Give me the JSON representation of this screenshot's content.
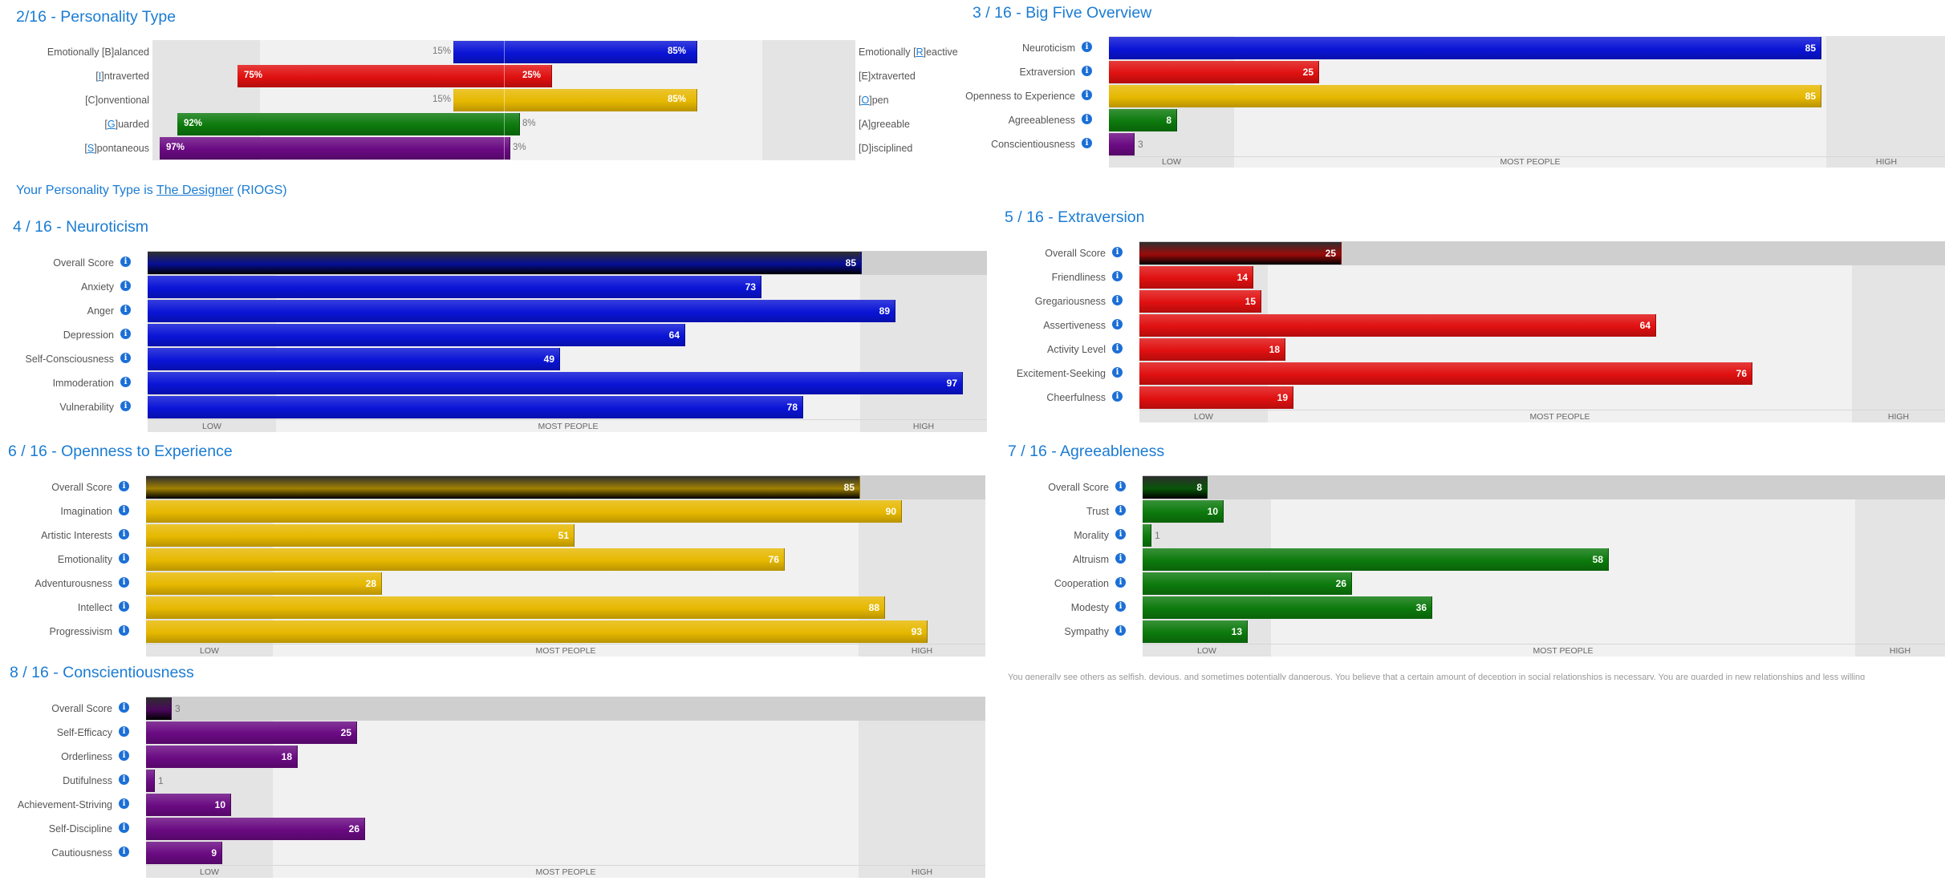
{
  "personality_type": {
    "title": "2/16 - Personality Type",
    "rows": [
      {
        "left_prefix": "Emotionally [B]alanced",
        "right_prefix": "Emotionally [",
        "right_key": "R",
        "right_suffix": "]eactive",
        "left_key": "",
        "left_suffix": "",
        "left_pct": "15%",
        "right_pct": "85%",
        "dominant": "right",
        "value": 85,
        "color": "#0a14d6"
      },
      {
        "left_prefix": "[",
        "left_key": "I",
        "left_suffix": "]ntraverted",
        "right_prefix": "[E]xtraverted",
        "right_key": "",
        "right_suffix": "",
        "left_pct": "75%",
        "right_pct": "25%",
        "dominant": "left",
        "value": 75,
        "color": "#e01010"
      },
      {
        "left_prefix": "[C]onventional",
        "left_key": "",
        "left_suffix": "",
        "right_prefix": "[",
        "right_key": "O",
        "right_suffix": "]pen",
        "left_pct": "15%",
        "right_pct": "85%",
        "dominant": "right",
        "value": 85,
        "color": "#e6b800"
      },
      {
        "left_prefix": "[",
        "left_key": "G",
        "left_suffix": "]uarded",
        "right_prefix": "[A]greeable",
        "right_key": "",
        "right_suffix": "",
        "left_pct": "92%",
        "right_pct": "8%",
        "dominant": "left",
        "value": 92,
        "color": "#0c7a0c"
      },
      {
        "left_prefix": "[",
        "left_key": "S",
        "left_suffix": "]pontaneous",
        "right_prefix": "[D]isciplined",
        "right_key": "",
        "right_suffix": "",
        "left_pct": "97%",
        "right_pct": "3%",
        "dominant": "left",
        "value": 97,
        "color": "#6a0a82"
      }
    ]
  },
  "type_line": {
    "prefix": "Your Personality Type is ",
    "name": "The Designer",
    "suffix": " (RIOGS)"
  },
  "axis_labels": {
    "low": "LOW",
    "mid": "MOST PEOPLE",
    "high": "HIGH"
  },
  "info_glyph": "i",
  "cut_text": "You generally see others as selfish, devious, and sometimes potentially dangerous. You believe that a certain amount of deception in social relationships is necessary. You are guarded in new relationships and less willing",
  "colors": {
    "title": "#1b7cd3",
    "neuroticism": "#0a14d6",
    "extraversion": "#e01010",
    "openness": "#e6b800",
    "agreeableness": "#0c7a0c",
    "conscientiousness": "#6a0a82"
  },
  "chart_data": [
    {
      "type": "bar",
      "id": "big5",
      "title": "3 / 16 - Big Five Overview",
      "categories": [
        "Neuroticism",
        "Extraversion",
        "Openness to Experience",
        "Agreeableness",
        "Conscientiousness"
      ],
      "values": [
        85,
        25,
        85,
        8,
        3
      ],
      "xlim": [
        0,
        100
      ],
      "colors": [
        "#0a14d6",
        "#e01010",
        "#e6b800",
        "#0c7a0c",
        "#6a0a82"
      ]
    },
    {
      "type": "bar",
      "id": "neuro",
      "title": "4 / 16 - Neuroticism",
      "categories": [
        "Overall Score",
        "Anxiety",
        "Anger",
        "Depression",
        "Self-Consciousness",
        "Immoderation",
        "Vulnerability"
      ],
      "values": [
        85,
        73,
        89,
        64,
        49,
        97,
        78
      ],
      "xlim": [
        0,
        100
      ],
      "color": "#0a14d6"
    },
    {
      "type": "bar",
      "id": "extra",
      "title": "5 / 16 - Extraversion",
      "categories": [
        "Overall Score",
        "Friendliness",
        "Gregariousness",
        "Assertiveness",
        "Activity Level",
        "Excitement-Seeking",
        "Cheerfulness"
      ],
      "values": [
        25,
        14,
        15,
        64,
        18,
        76,
        19
      ],
      "xlim": [
        0,
        100
      ],
      "color": "#e01010"
    },
    {
      "type": "bar",
      "id": "open",
      "title": "6 / 16 - Openness to Experience",
      "categories": [
        "Overall Score",
        "Imagination",
        "Artistic Interests",
        "Emotionality",
        "Adventurousness",
        "Intellect",
        "Progressivism"
      ],
      "values": [
        85,
        90,
        51,
        76,
        28,
        88,
        93
      ],
      "xlim": [
        0,
        100
      ],
      "color": "#e6b800"
    },
    {
      "type": "bar",
      "id": "agree",
      "title": "7 / 16 - Agreeableness",
      "categories": [
        "Overall Score",
        "Trust",
        "Morality",
        "Altruism",
        "Cooperation",
        "Modesty",
        "Sympathy"
      ],
      "values": [
        8,
        10,
        1,
        58,
        26,
        36,
        13
      ],
      "xlim": [
        0,
        100
      ],
      "color": "#0c7a0c"
    },
    {
      "type": "bar",
      "id": "consc",
      "title": "8 / 16 - Conscientiousness",
      "categories": [
        "Overall Score",
        "Self-Efficacy",
        "Orderliness",
        "Dutifulness",
        "Achievement-Striving",
        "Self-Discipline",
        "Cautiousness"
      ],
      "values": [
        3,
        25,
        18,
        1,
        10,
        26,
        9
      ],
      "xlim": [
        0,
        100
      ],
      "color": "#6a0a82"
    }
  ]
}
